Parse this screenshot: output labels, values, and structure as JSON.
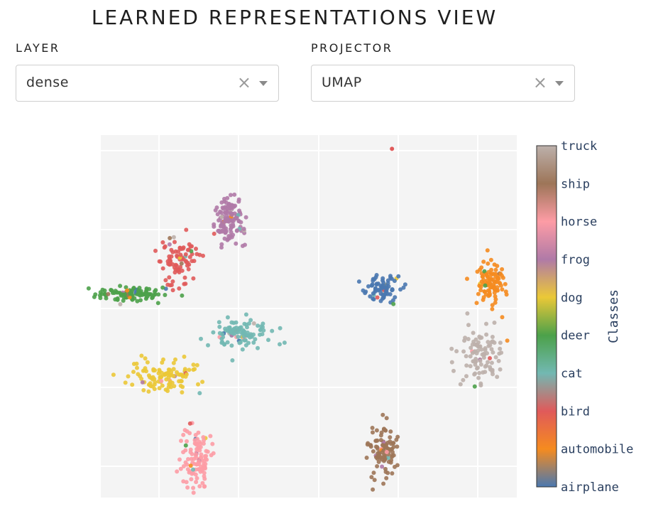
{
  "page": {
    "title": "LEARNED REPRESENTATIONS VIEW"
  },
  "controls": {
    "layer": {
      "label": "LAYER",
      "value": "dense",
      "clear_icon": "close-icon",
      "dropdown_icon": "chevron-down-icon"
    },
    "projector": {
      "label": "PROJECTOR",
      "value": "UMAP",
      "clear_icon": "close-icon",
      "dropdown_icon": "chevron-down-icon"
    }
  },
  "chart_data": {
    "type": "scatter",
    "title": "",
    "xlabel": "",
    "ylabel": "",
    "grid": true,
    "background": "#f4f4f4",
    "colorbar": {
      "title": "Classes",
      "placement": "right",
      "ticks": [
        "airplane",
        "automobile",
        "bird",
        "cat",
        "deer",
        "dog",
        "frog",
        "horse",
        "ship",
        "truck"
      ]
    },
    "class_colors": {
      "airplane": "#4a78b0",
      "automobile": "#f58b1f",
      "bird": "#e05a5a",
      "cat": "#72b8b2",
      "deer": "#4ca14a",
      "dog": "#ebc837",
      "frog": "#b07aa7",
      "horse": "#fd9ca5",
      "ship": "#9d7558",
      "truck": "#bcb0ab"
    },
    "clusters": [
      {
        "class": "frog",
        "center": [
          2.0,
          6.2
        ],
        "spread": [
          0.25,
          0.45
        ],
        "n": 130
      },
      {
        "class": "bird",
        "center": [
          0.4,
          4.7
        ],
        "spread": [
          0.3,
          0.45
        ],
        "n": 90
      },
      {
        "class": "deer",
        "center": [
          -1.1,
          3.4
        ],
        "spread": [
          0.5,
          0.12
        ],
        "n": 110
      },
      {
        "class": "cat",
        "center": [
          2.4,
          2.0
        ],
        "spread": [
          0.5,
          0.25
        ],
        "n": 110
      },
      {
        "class": "dog",
        "center": [
          0.0,
          0.4
        ],
        "spread": [
          0.55,
          0.3
        ],
        "n": 110
      },
      {
        "class": "horse",
        "center": [
          1.0,
          -2.6
        ],
        "spread": [
          0.22,
          0.55
        ],
        "n": 110
      },
      {
        "class": "airplane",
        "center": [
          6.8,
          3.6
        ],
        "spread": [
          0.3,
          0.22
        ],
        "n": 80
      },
      {
        "class": "ship",
        "center": [
          6.8,
          -2.3
        ],
        "spread": [
          0.22,
          0.5
        ],
        "n": 100
      },
      {
        "class": "automobile",
        "center": [
          10.2,
          3.9
        ],
        "spread": [
          0.2,
          0.4
        ],
        "n": 100
      },
      {
        "class": "truck",
        "center": [
          9.9,
          1.2
        ],
        "spread": [
          0.35,
          0.45
        ],
        "n": 100
      }
    ],
    "outliers": [
      {
        "class": "bird",
        "x": 7.1,
        "y": 8.7
      }
    ]
  }
}
